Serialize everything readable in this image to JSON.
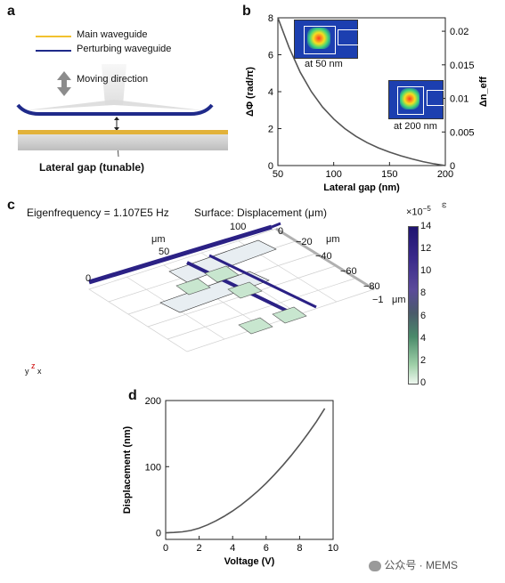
{
  "panels": {
    "a": {
      "label": "a",
      "legend": [
        {
          "name": "Main waveguide",
          "color": "#f2c12e"
        },
        {
          "name": "Perturbing waveguide",
          "color": "#1f2a8a"
        }
      ],
      "moving_direction": "Moving direction",
      "gap_label": "Lateral gap (tunable)"
    },
    "b": {
      "label": "b",
      "inset1": "at 50 nm",
      "inset2": "at 200 nm"
    },
    "c": {
      "label": "c",
      "eigen": "Eigenfrequency = 1.107E5 Hz",
      "surface": "Surface: Displacement (μm)",
      "axis_labels": [
        "μm",
        "100",
        "50",
        "0",
        "0",
        "−20",
        "μm",
        "−40",
        "−60",
        "−80",
        "−1",
        "μm"
      ],
      "colorbar": {
        "multiplier": "×10",
        "exponent": "−5",
        "small": "ω",
        "ticks": [
          "14",
          "12",
          "10",
          "8",
          "6",
          "4",
          "2",
          "0"
        ]
      },
      "triad": {
        "y": "y",
        "z": "z",
        "x": "x"
      }
    },
    "d": {
      "label": "d"
    }
  },
  "watermark": "公众号 · MEMS",
  "chart_data": [
    {
      "type": "line",
      "xlabel": "Lateral gap (nm)",
      "ylabel": "ΔΦ (rad/π)",
      "y2label": "Δn_eff",
      "xlim": [
        50,
        200
      ],
      "ylim": [
        0,
        8
      ],
      "y2lim": [
        0,
        0.022
      ],
      "xticks": [
        "50",
        "100",
        "150",
        "200"
      ],
      "yticks": [
        "0",
        "2",
        "4",
        "6",
        "8"
      ],
      "y2ticks": [
        "0",
        "0.005",
        "0.01",
        "0.015",
        "0.02"
      ],
      "x": [
        50,
        60,
        70,
        80,
        90,
        100,
        110,
        120,
        130,
        140,
        150,
        160,
        170,
        180,
        190,
        200
      ],
      "y": [
        8.2,
        6.4,
        5.05,
        4.0,
        3.17,
        2.52,
        2.0,
        1.58,
        1.24,
        0.96,
        0.73,
        0.53,
        0.36,
        0.21,
        0.09,
        0.0
      ]
    },
    {
      "type": "line",
      "xlabel": "Voltage (V)",
      "ylabel": "Displacement (nm)",
      "xlim": [
        0,
        10
      ],
      "ylim": [
        -10,
        200
      ],
      "xticks": [
        "0",
        "2",
        "4",
        "6",
        "8",
        "10"
      ],
      "yticks": [
        "0",
        "100",
        "200"
      ],
      "x": [
        0,
        0.5,
        1,
        1.5,
        2,
        2.5,
        3,
        3.5,
        4,
        4.5,
        5,
        5.5,
        6,
        6.5,
        7,
        7.5,
        8,
        8.5,
        9,
        9.5
      ],
      "y": [
        0,
        0.5,
        1.5,
        3.5,
        7,
        12,
        18,
        25,
        33,
        42,
        52,
        63,
        75,
        88,
        102,
        117,
        133,
        150,
        168,
        188
      ]
    }
  ]
}
